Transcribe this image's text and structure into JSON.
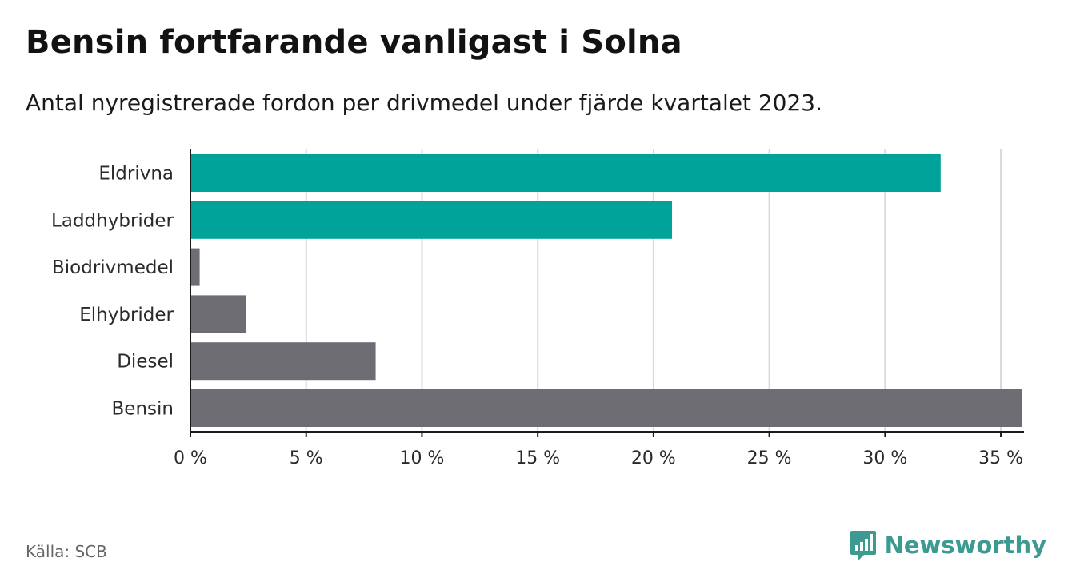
{
  "header": {
    "title": "Bensin fortfarande vanligast i Solna",
    "subtitle": "Antal nyregistrerade fordon per drivmedel under fjärde kvartalet 2023."
  },
  "footer": {
    "source": "Källa: SCB",
    "brand": "Newsworthy",
    "brand_icon": "bar-chart-speech-bubble-icon"
  },
  "colors": {
    "highlight": "#00a39a",
    "default": "#6e6d74",
    "brand": "#3d9a90",
    "gridline": "#d9d9d9",
    "axis": "#1a1a1a"
  },
  "chart_data": {
    "type": "bar",
    "orientation": "horizontal",
    "title": "Bensin fortfarande vanligast i Solna",
    "subtitle": "Antal nyregistrerade fordon per drivmedel under fjärde kvartalet 2023.",
    "xlabel": "",
    "ylabel": "",
    "xlim": [
      0,
      36
    ],
    "grid": true,
    "legend": "none",
    "x_ticks": [
      0,
      5,
      10,
      15,
      20,
      25,
      30,
      35
    ],
    "x_tick_labels": [
      "0 %",
      "5 %",
      "10 %",
      "15 %",
      "20 %",
      "25 %",
      "30 %",
      "35 %"
    ],
    "categories": [
      "Eldrivna",
      "Laddhybrider",
      "Biodrivmedel",
      "Elhybrider",
      "Diesel",
      "Bensin"
    ],
    "values": [
      32.4,
      20.8,
      0.4,
      2.4,
      8.0,
      35.9
    ],
    "highlighted": [
      true,
      true,
      false,
      false,
      false,
      false
    ]
  }
}
